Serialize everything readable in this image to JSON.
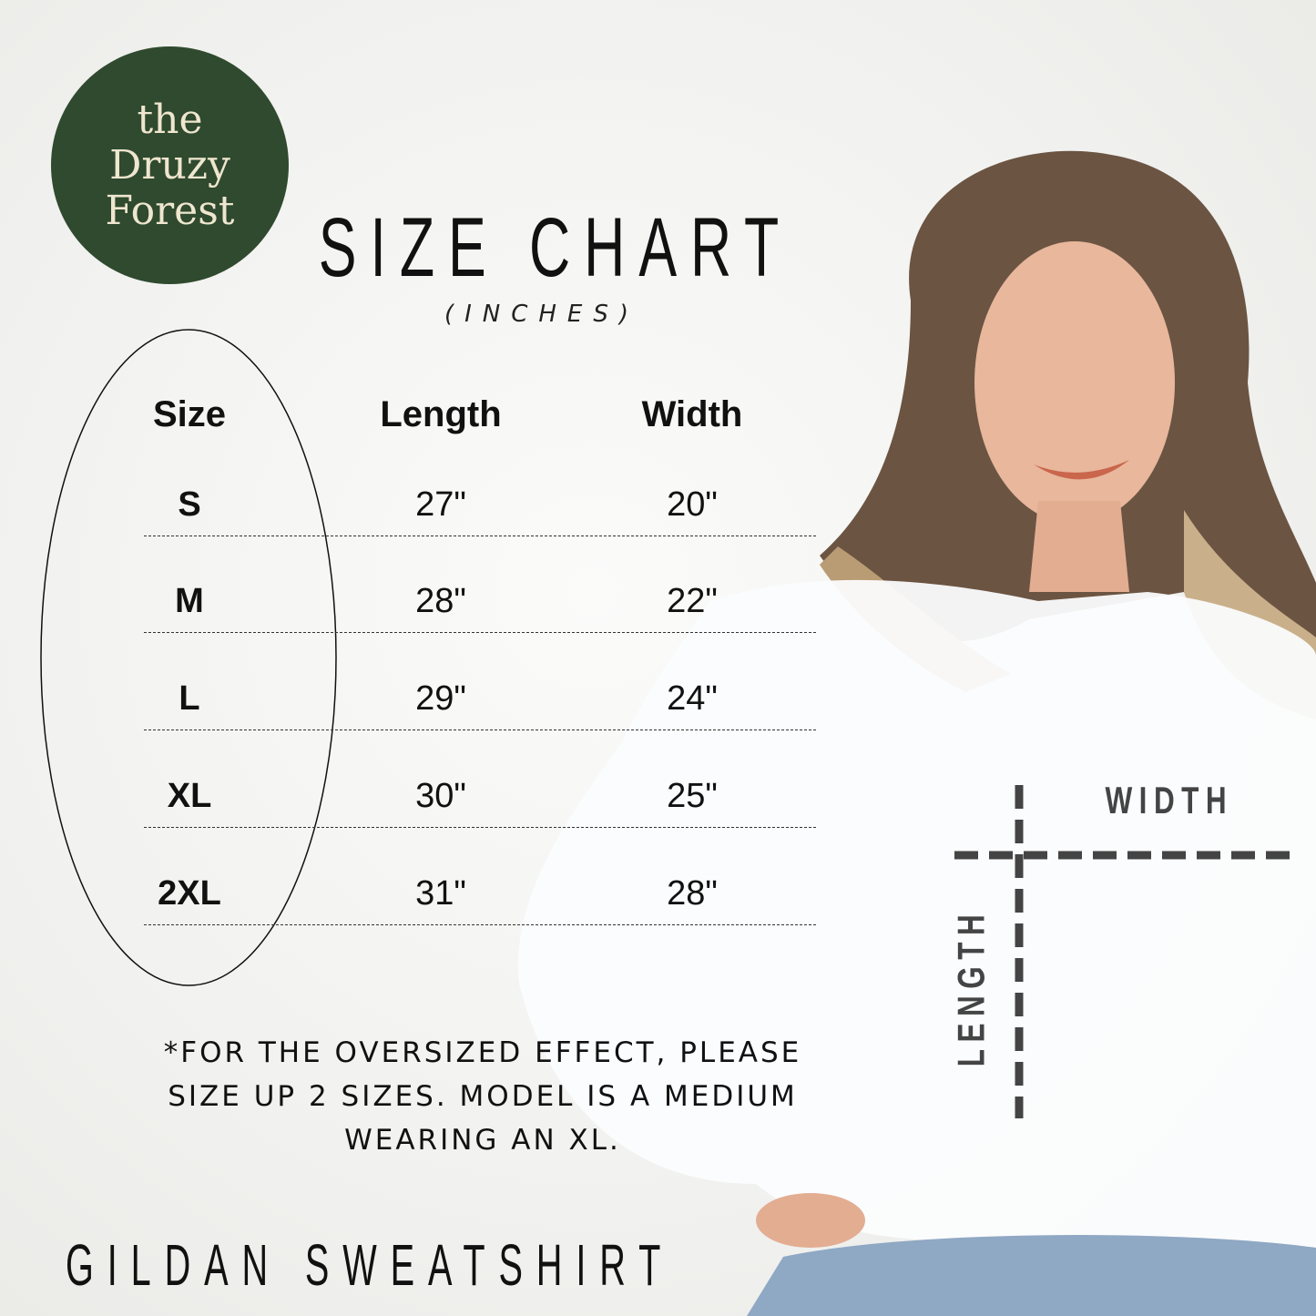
{
  "brand": {
    "logo_text": [
      "the",
      "Druzy",
      "Forest"
    ],
    "color": "#2f4a2e"
  },
  "title": "SIZE CHART",
  "subtitle": "(INCHES)",
  "table": {
    "headers": [
      "Size",
      "Length",
      "Width"
    ],
    "rows": [
      {
        "size": "S",
        "length": "27\"",
        "width": "20\""
      },
      {
        "size": "M",
        "length": "28\"",
        "width": "22\""
      },
      {
        "size": "L",
        "length": "29\"",
        "width": "24\""
      },
      {
        "size": "XL",
        "length": "30\"",
        "width": "25\""
      },
      {
        "size": "2XL",
        "length": "31\"",
        "width": "28\""
      }
    ]
  },
  "note": [
    "*FOR THE OVERSIZED EFFECT, PLEASE",
    "SIZE UP 2 SIZES. MODEL IS A MEDIUM",
    "WEARING AN XL."
  ],
  "product": "GILDAN SWEATSHIRT",
  "diagram": {
    "width_label": "WIDTH",
    "length_label": "LENGTH",
    "color": "#444444"
  }
}
